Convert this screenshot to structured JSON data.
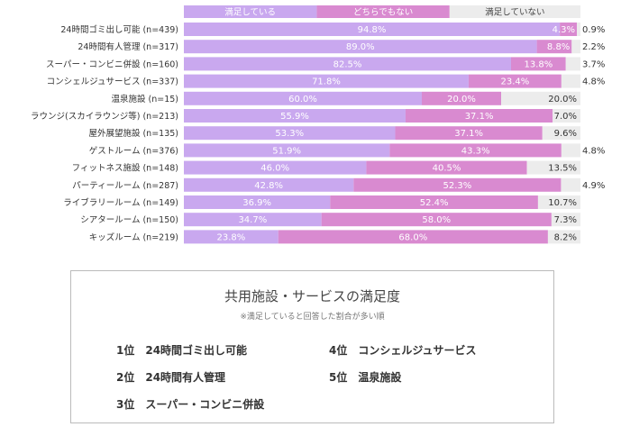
{
  "colors": {
    "satisfied": "#c9a8ef",
    "neutral": "#d98ad0",
    "unsatisfied": "#ececec",
    "value_label": "#ffffff",
    "side_label": "#333333"
  },
  "chart_data": {
    "type": "bar",
    "orientation": "horizontal",
    "stacked": true,
    "percent_scale": [
      0,
      100
    ],
    "legend": {
      "position": "top",
      "items": [
        "満足している",
        "どちらでもない",
        "満足していない"
      ]
    },
    "categories": [
      "24時間ゴミ出し可能 (n=439)",
      "24時間有人管理 (n=317)",
      "スーパー・コンビニ併設 (n=160)",
      "コンシェルジュサービス (n=337)",
      "温泉施設 (n=15)",
      "ラウンジ(スカイラウンジ等) (n=213)",
      "屋外展望施設 (n=135)",
      "ゲストルーム (n=376)",
      "フィットネス施設 (n=148)",
      "パーティールーム (n=287)",
      "ライブラリールーム (n=149)",
      "シアタールーム (n=150)",
      "キッズルーム (n=219)"
    ],
    "series": [
      {
        "name": "満足している",
        "values": [
          94.8,
          89.0,
          82.5,
          71.8,
          60.0,
          55.9,
          53.3,
          51.9,
          46.0,
          42.8,
          36.9,
          34.7,
          23.8
        ]
      },
      {
        "name": "どちらでもない",
        "values": [
          4.3,
          8.8,
          13.8,
          23.4,
          20.0,
          37.1,
          37.1,
          43.3,
          40.5,
          52.3,
          52.4,
          58.0,
          68.0
        ]
      },
      {
        "name": "満足していない",
        "values": [
          0.9,
          2.2,
          3.7,
          4.8,
          20.0,
          7.0,
          9.6,
          4.8,
          13.5,
          4.9,
          10.7,
          7.3,
          8.2
        ]
      }
    ]
  },
  "summary": {
    "title": "共用施設・サービスの満足度",
    "note": "※満足していると回答した割合が多い順",
    "ranks": [
      {
        "pos": "1位",
        "name": "24時間ゴミ出し可能"
      },
      {
        "pos": "2位",
        "name": "24時間有人管理"
      },
      {
        "pos": "3位",
        "name": "スーパー・コンビニ併設"
      },
      {
        "pos": "4位",
        "name": "コンシェルジュサービス"
      },
      {
        "pos": "5位",
        "name": "温泉施設"
      }
    ]
  }
}
